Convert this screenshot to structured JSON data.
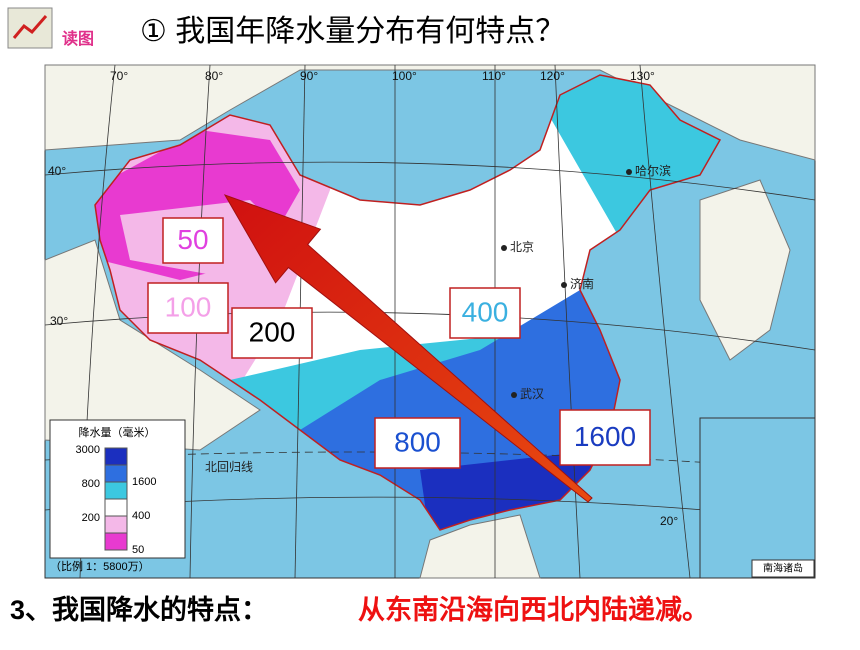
{
  "header": {
    "icon_label": "读图",
    "title": "① 我国年降水量分布有何特点？"
  },
  "map": {
    "longitudes": [
      "70°",
      "80°",
      "90°",
      "100°",
      "110°",
      "120°",
      "130°"
    ],
    "latitudes": [
      "40°",
      "30°",
      "20°"
    ],
    "cities": [
      "北京",
      "济南",
      "哈尔滨",
      "武汉"
    ],
    "tropic_label": "北回归线",
    "region_labels": [
      "50",
      "100",
      "200",
      "400",
      "800",
      "1600"
    ],
    "legend": {
      "title": "降水量（毫米）",
      "items": [
        {
          "label": "3000",
          "color": "#1b2fbf"
        },
        {
          "label": "1600",
          "color": "#2e6fe0"
        },
        {
          "label": "800",
          "color": "#3cc8e0"
        },
        {
          "label": "400",
          "color": "#ffffff"
        },
        {
          "label": "200",
          "color": "#f4b8e8"
        },
        {
          "label": "50",
          "color": "#e83ad0"
        }
      ]
    },
    "scale": "（比例 1：5800万）",
    "inset_label": "南海诸岛"
  },
  "footer": {
    "lead": "3、我国降水的特点：",
    "conclusion": "从东南沿海向西北内陆递减。"
  }
}
